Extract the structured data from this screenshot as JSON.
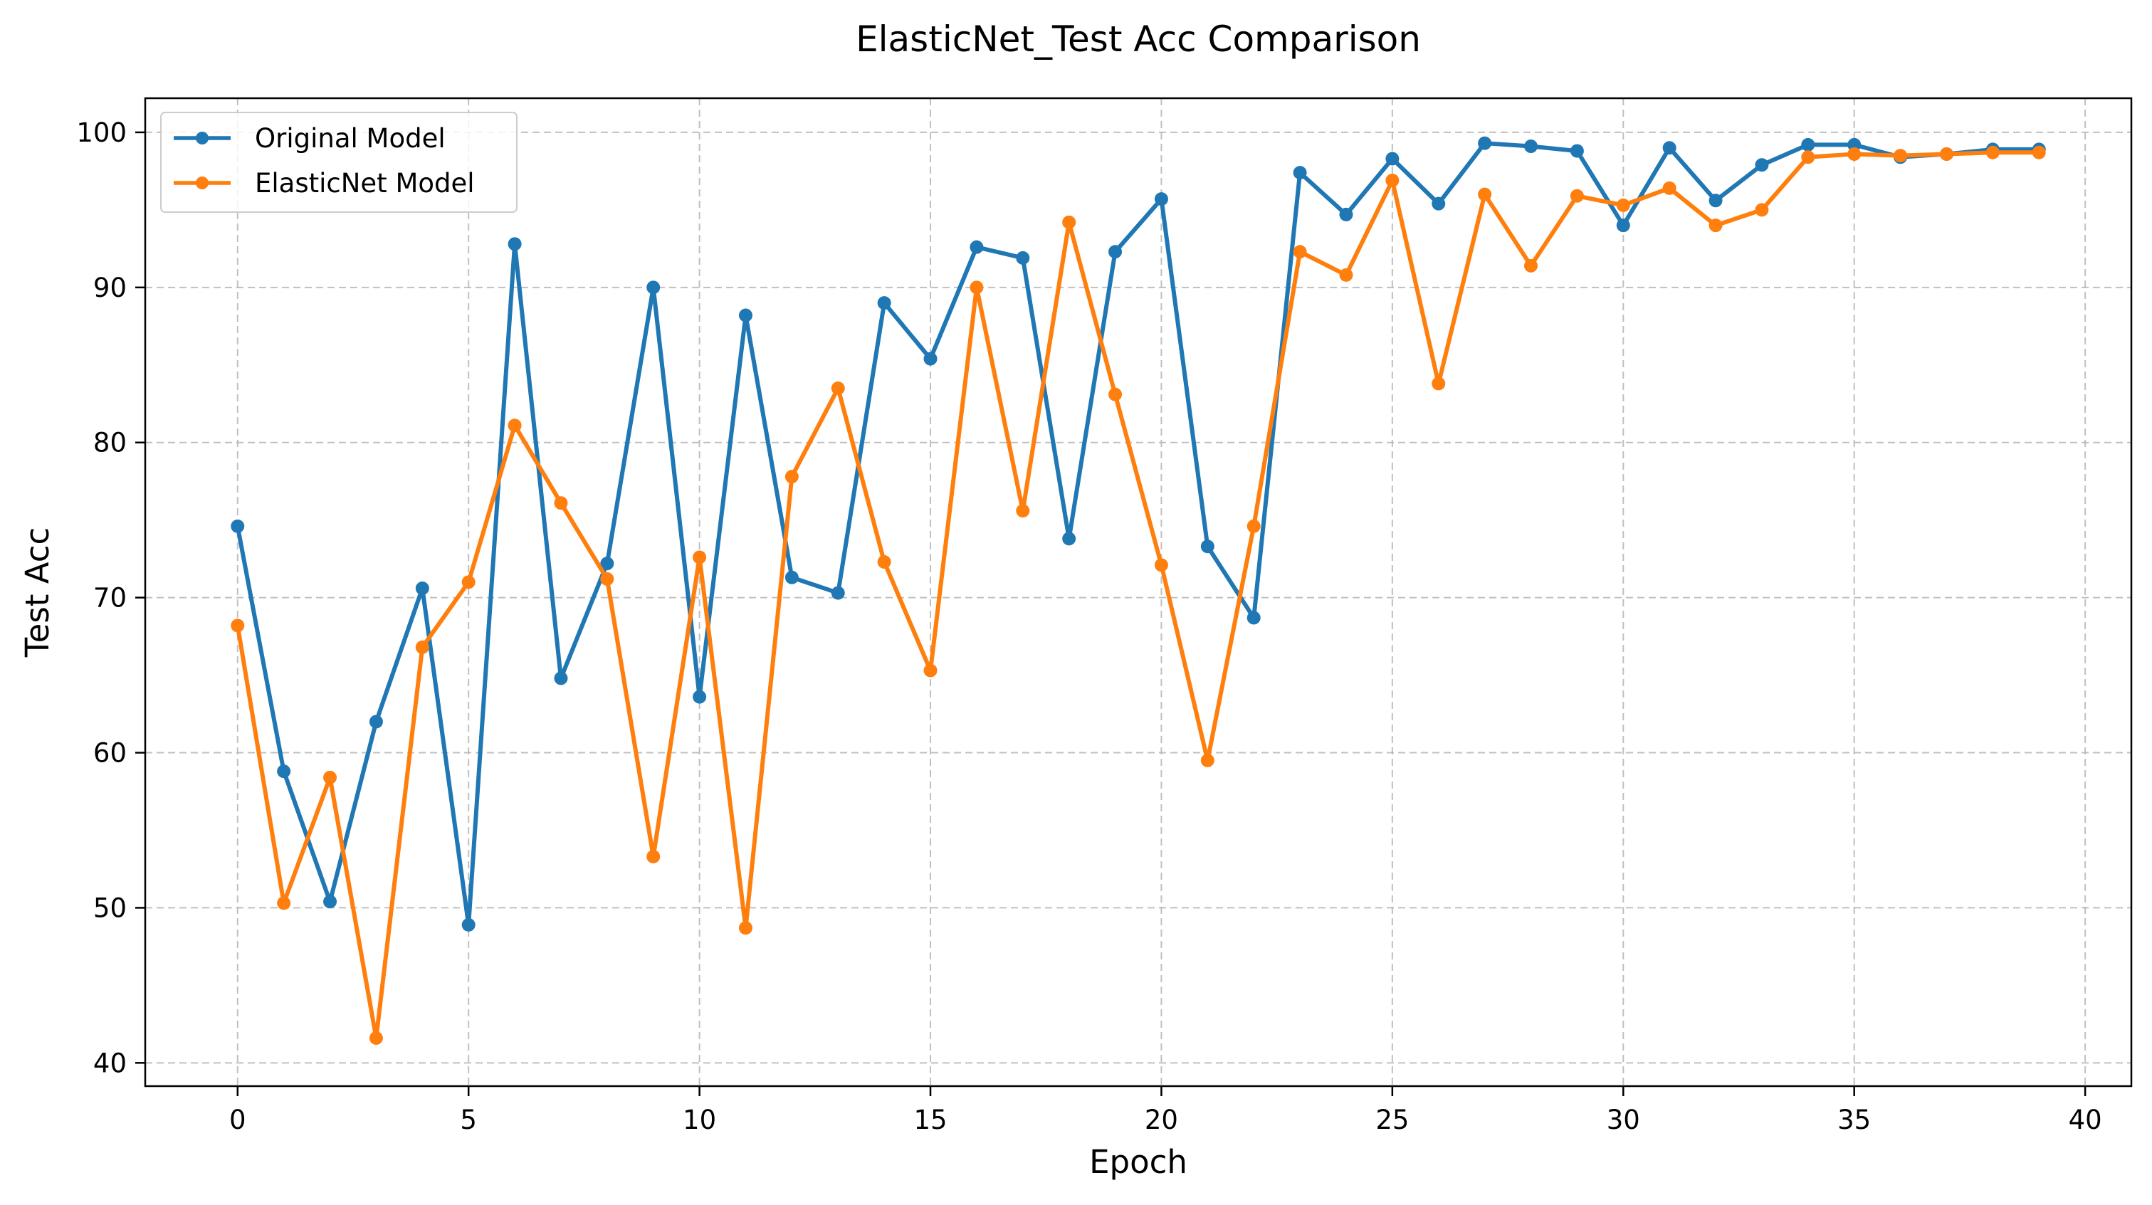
{
  "chart_data": {
    "type": "line",
    "title": "ElasticNet_Test Acc Comparison",
    "xlabel": "Epoch",
    "ylabel": "Test Acc",
    "xlim": [
      -2,
      41
    ],
    "ylim": [
      38.5,
      102.2
    ],
    "xticks": [
      0,
      5,
      10,
      15,
      20,
      25,
      30,
      35,
      40
    ],
    "yticks": [
      40,
      50,
      60,
      70,
      80,
      90,
      100
    ],
    "grid": true,
    "grid_style": "dashed",
    "legend_position": "upper-left",
    "x": [
      0,
      1,
      2,
      3,
      4,
      5,
      6,
      7,
      8,
      9,
      10,
      11,
      12,
      13,
      14,
      15,
      16,
      17,
      18,
      19,
      20,
      21,
      22,
      23,
      24,
      25,
      26,
      27,
      28,
      29,
      30,
      31,
      32,
      33,
      34,
      35,
      36,
      37,
      38,
      39
    ],
    "series": [
      {
        "name": "Original Model",
        "color": "#1f77b4",
        "values": [
          74.6,
          58.8,
          50.4,
          62.0,
          70.6,
          48.9,
          92.8,
          64.8,
          72.2,
          90.0,
          63.6,
          88.2,
          71.3,
          70.3,
          89.0,
          85.4,
          92.6,
          91.9,
          73.8,
          92.3,
          95.7,
          73.3,
          68.7,
          97.4,
          94.7,
          98.3,
          95.4,
          99.3,
          99.1,
          98.8,
          94.0,
          99.0,
          95.6,
          97.9,
          99.2,
          99.2,
          98.4,
          98.6,
          98.9,
          98.9
        ]
      },
      {
        "name": "ElasticNet Model",
        "color": "#ff7f0e",
        "values": [
          68.2,
          50.3,
          58.4,
          41.6,
          66.8,
          71.0,
          81.1,
          76.1,
          71.2,
          53.3,
          72.6,
          48.7,
          77.8,
          83.5,
          72.3,
          65.3,
          90.0,
          75.6,
          94.2,
          83.1,
          72.1,
          59.5,
          74.6,
          92.3,
          90.8,
          96.9,
          83.8,
          96.0,
          91.4,
          95.9,
          95.3,
          96.4,
          94.0,
          95.0,
          98.4,
          98.6,
          98.5,
          98.6,
          98.7,
          98.7
        ]
      }
    ]
  }
}
